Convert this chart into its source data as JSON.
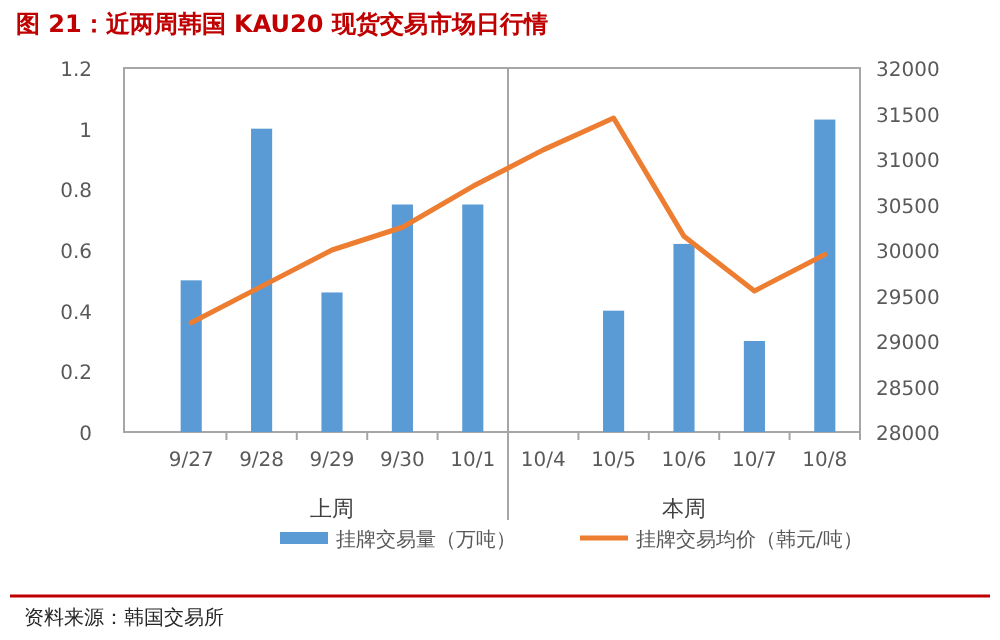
{
  "chart_data": {
    "type": "bar",
    "title": "图 21：近两周韩国 KAU20 现货交易市场日行情",
    "categories": [
      "9/27",
      "9/28",
      "9/29",
      "9/30",
      "10/1",
      "10/4",
      "10/5",
      "10/6",
      "10/7",
      "10/8"
    ],
    "series": [
      {
        "name": "挂牌交易量（万吨）",
        "color": "#5b9bd5",
        "values": [
          0.5,
          1.0,
          0.46,
          0.75,
          0.75,
          null,
          0.4,
          0.62,
          0.3,
          1.03
        ]
      },
      {
        "name": "挂牌交易均价（韩元/吨）",
        "type": "line",
        "axis": "y2",
        "color": "#ed7d31",
        "values": [
          29200,
          29600,
          30000,
          30250,
          30700,
          31100,
          31450,
          30150,
          29550,
          29950
        ]
      }
    ],
    "ylim": [
      0,
      1.2
    ],
    "yticks": [
      0,
      0.2,
      0.4,
      0.6,
      0.8,
      1,
      1.2
    ],
    "y2lim": [
      28000,
      32000
    ],
    "y2ticks": [
      28000,
      28500,
      29000,
      29500,
      30000,
      30500,
      31000,
      31500,
      32000
    ],
    "legend": "bottom",
    "grid": false,
    "annotations": [
      "上周",
      "本周",
      "资料来源：韩国交易所"
    ]
  }
}
